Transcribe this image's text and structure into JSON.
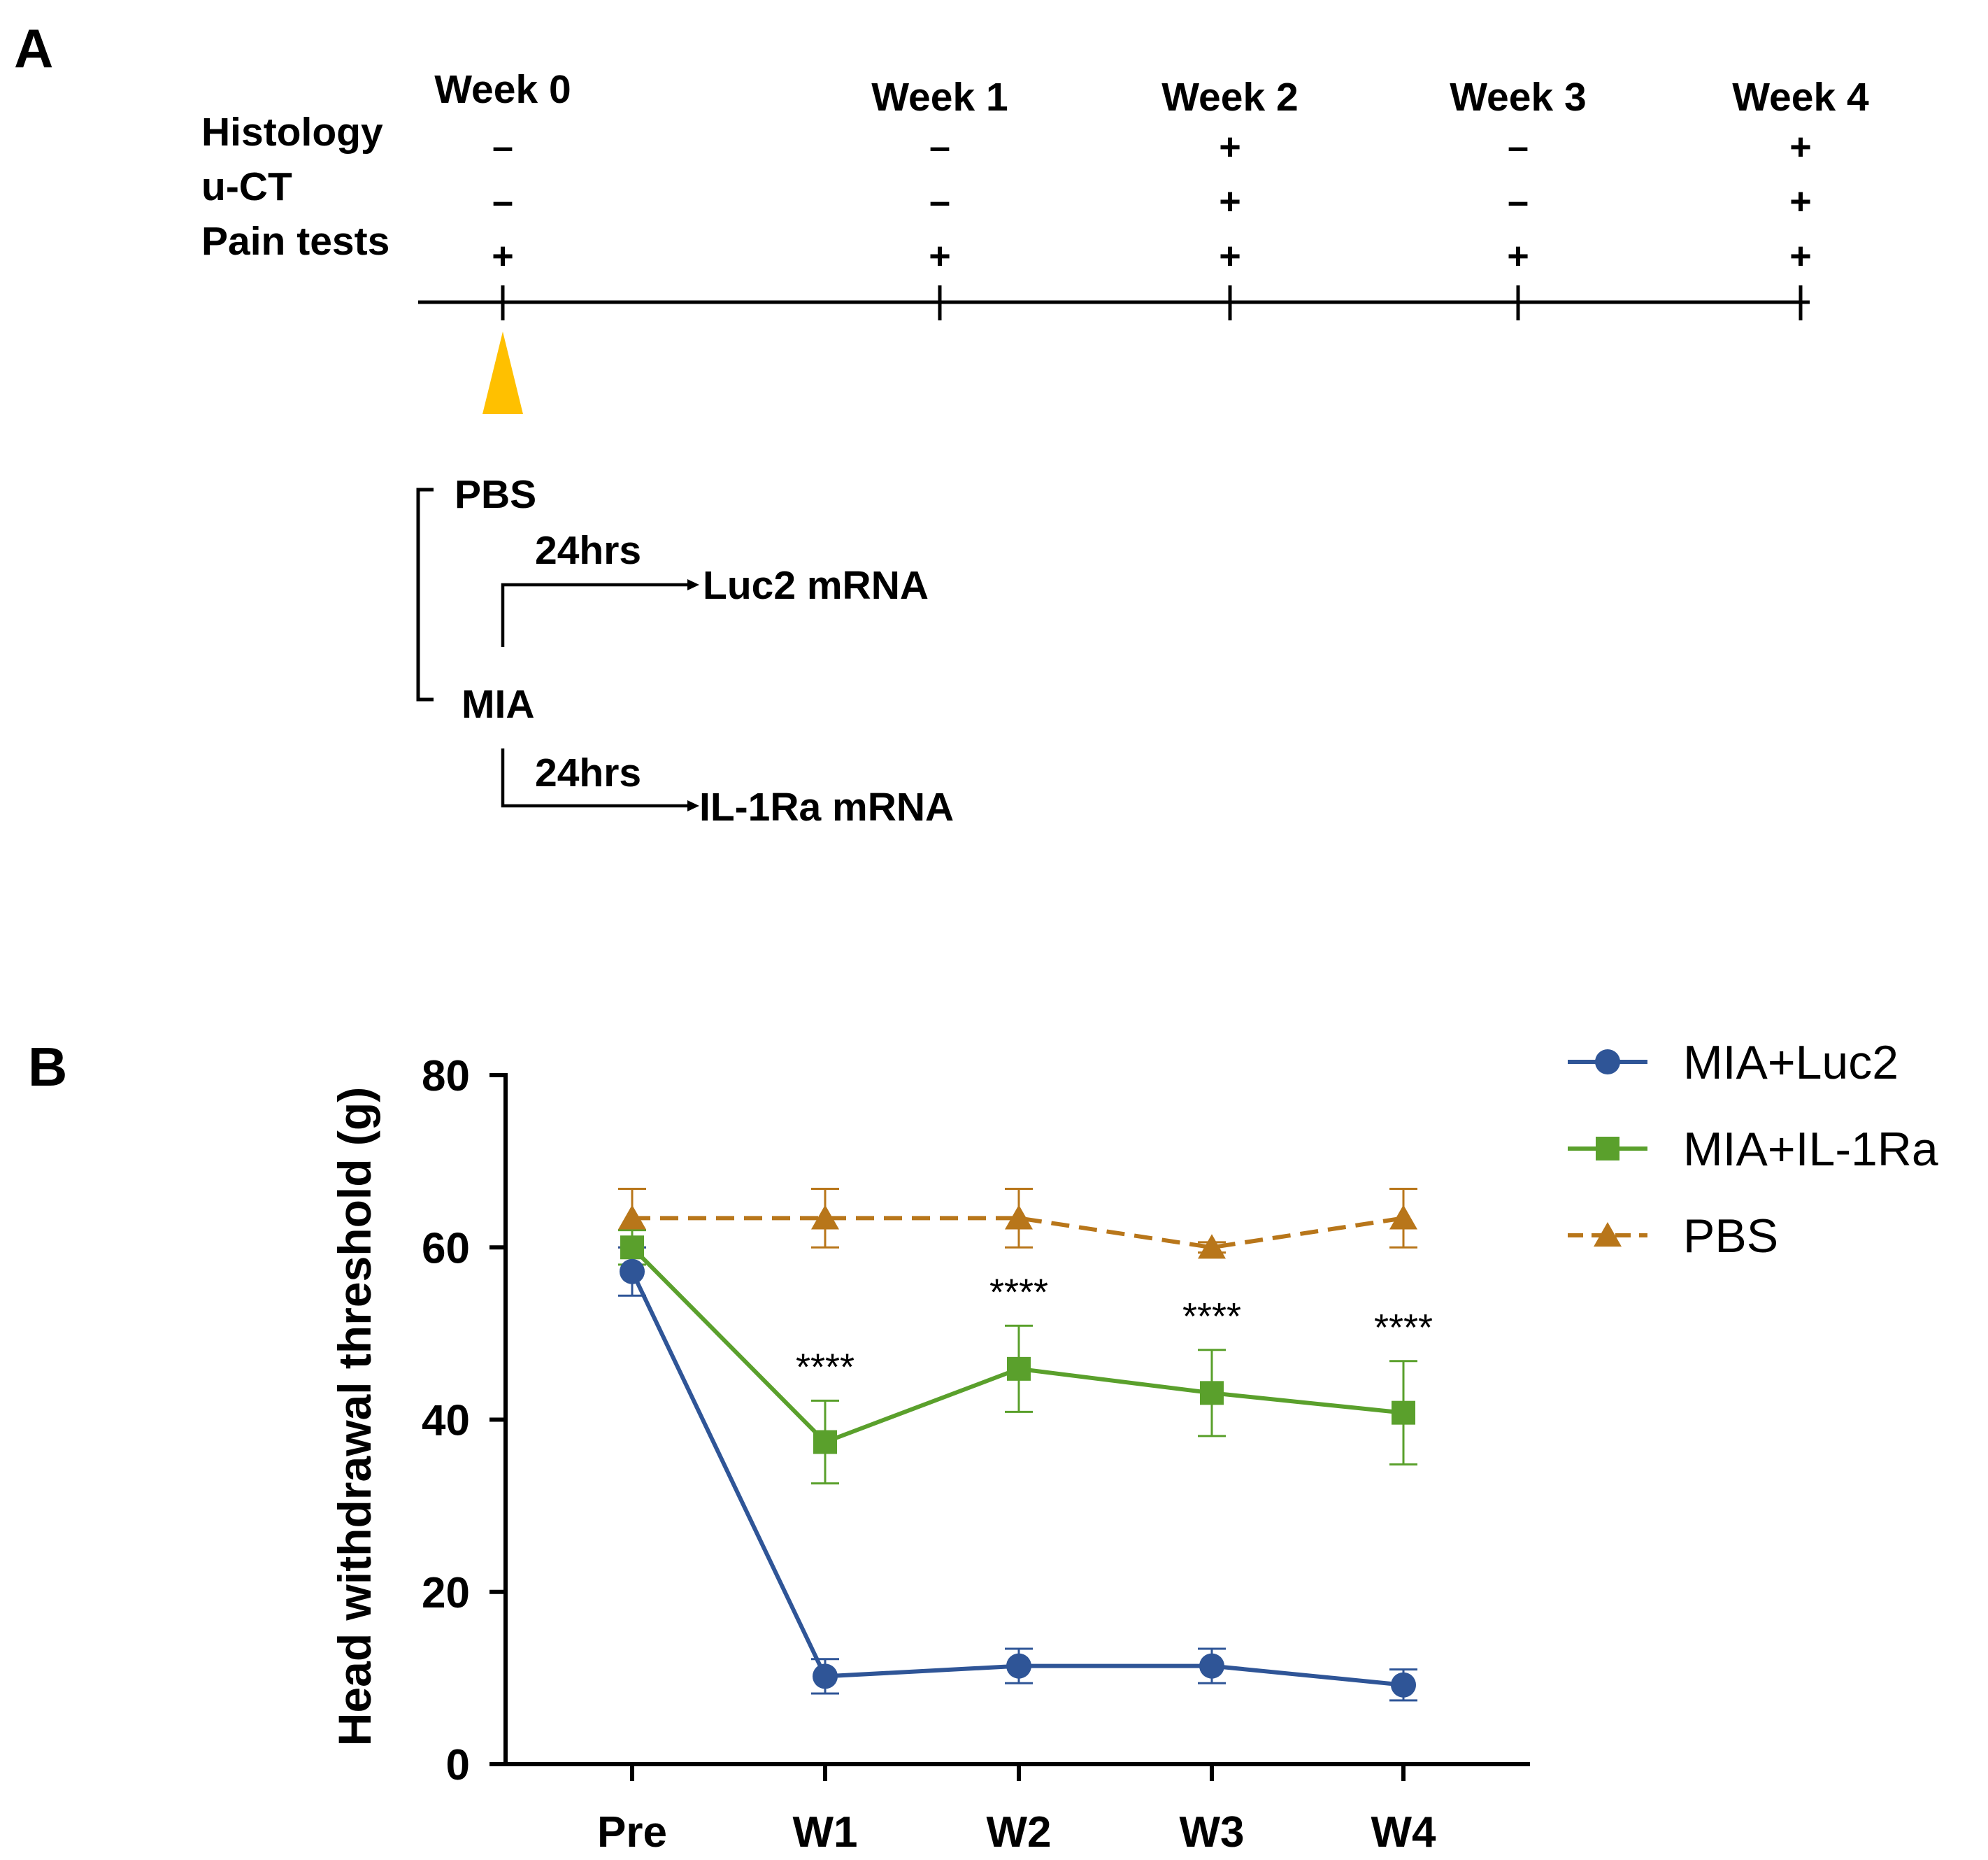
{
  "panel_a": {
    "letter": "A",
    "row_labels": [
      "Histology",
      "u-CT",
      "Pain tests"
    ],
    "timepoints": [
      {
        "week": "Week 0",
        "marks": [
          "–",
          "–",
          "+"
        ]
      },
      {
        "week": "Week 1",
        "marks": [
          "–",
          "–",
          "+"
        ]
      },
      {
        "week": "Week 2",
        "marks": [
          "+",
          "+",
          "+"
        ]
      },
      {
        "week": "Week 3",
        "marks": [
          "–",
          "–",
          "+"
        ]
      },
      {
        "week": "Week 4",
        "marks": [
          "+",
          "+",
          "+"
        ]
      }
    ],
    "injection_color": "#FFC000",
    "groups": {
      "pbs": "PBS",
      "mia": "MIA",
      "arrow1_time": "24hrs",
      "arrow1_target": "Luc2 mRNA",
      "arrow2_time": "24hrs",
      "arrow2_target": "IL-1Ra mRNA"
    }
  },
  "panel_b": {
    "letter": "B",
    "significance": "****"
  },
  "chart_data": {
    "type": "line",
    "title": "",
    "xlabel": "",
    "ylabel": "Head withdrawal threshold (g)",
    "categories": [
      "Pre",
      "W1",
      "W2",
      "W3",
      "W4"
    ],
    "ylim": [
      0,
      80
    ],
    "yticks": [
      0,
      20,
      40,
      60,
      80
    ],
    "legend_position": "top-right",
    "series": [
      {
        "name": "MIA+Luc2",
        "color": "#2F5597",
        "marker": "circle",
        "dash": false,
        "values": [
          57.2,
          10.2,
          11.4,
          11.4,
          9.2
        ],
        "errors": [
          2.8,
          2.0,
          2.0,
          2.0,
          1.8
        ]
      },
      {
        "name": "MIA+IL-1Ra",
        "color": "#5AA02C",
        "marker": "square",
        "dash": false,
        "values": [
          60.0,
          37.4,
          45.9,
          43.1,
          40.8
        ],
        "errors": [
          2.0,
          4.8,
          5.0,
          5.0,
          6.0
        ]
      },
      {
        "name": "PBS",
        "color": "#B8761A",
        "marker": "triangle",
        "dash": true,
        "values": [
          63.4,
          63.4,
          63.4,
          60.0,
          63.4
        ],
        "errors": [
          3.4,
          3.4,
          3.4,
          0.6,
          3.4
        ]
      }
    ],
    "annotations": [
      {
        "category": "W1",
        "text": "****"
      },
      {
        "category": "W2",
        "text": "****"
      },
      {
        "category": "W3",
        "text": "****"
      },
      {
        "category": "W4",
        "text": "****"
      }
    ]
  }
}
